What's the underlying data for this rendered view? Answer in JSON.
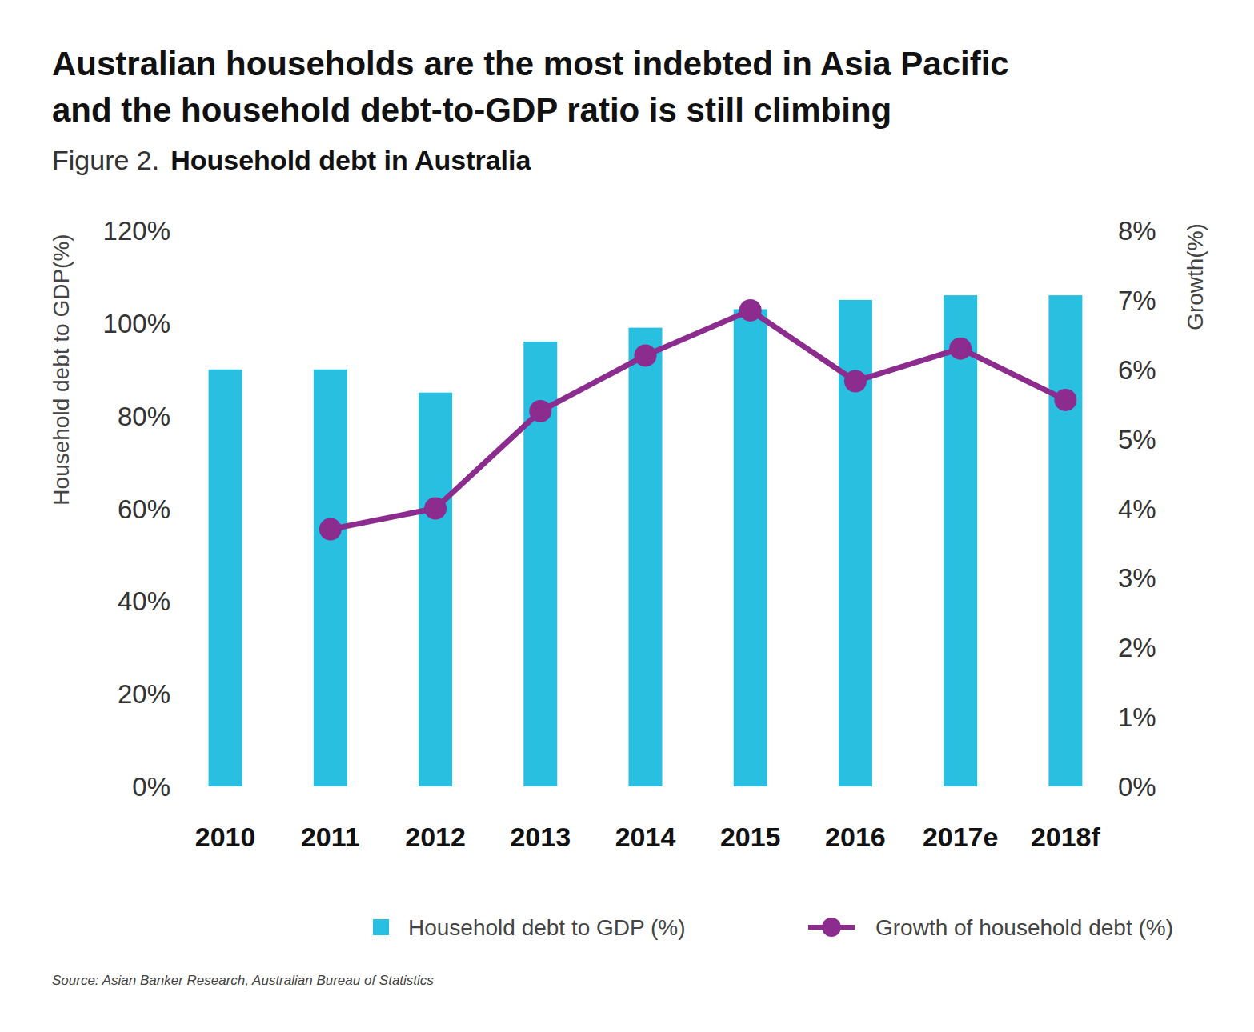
{
  "chart_data": {
    "type": "bar",
    "title": [
      "Australian households are the most indebted in Asia Pacific",
      "and the household debt-to-GDP ratio is still climbing"
    ],
    "figure": "Figure 2.",
    "subtitle": "Household debt in Australia",
    "y_label": "Household debt to GDP(%)",
    "y2_label": "Growth(%)",
    "source": "Source: Asian Banker Research, Australian Bureau of Statistics",
    "categories": [
      "2010",
      "2011",
      "2012",
      "2013",
      "2014",
      "2015",
      "2016",
      "2017e",
      "2018f"
    ],
    "series": [
      {
        "name": "Household debt to GDP (%)",
        "type": "bar",
        "color": "#29bfe0",
        "values": [
          90,
          90,
          85,
          96,
          99,
          103,
          105,
          106,
          106
        ]
      },
      {
        "name": "Growth of household debt (%)",
        "type": "line",
        "axis": "y2",
        "color": "#8b2c8e",
        "marker": "circle",
        "values": [
          null,
          3.7,
          4.0,
          5.4,
          6.2,
          6.85,
          5.83,
          6.3,
          5.56
        ]
      }
    ],
    "ylim": [
      0,
      120
    ],
    "yticks": [
      {
        "value": 0,
        "label": "0%"
      },
      {
        "value": 20,
        "label": "20%"
      },
      {
        "value": 40,
        "label": "40%"
      },
      {
        "value": 60,
        "label": "60%"
      },
      {
        "value": 80,
        "label": "80%"
      },
      {
        "value": 100,
        "label": "100%"
      },
      {
        "value": 120,
        "label": "120%"
      }
    ],
    "y2lim": [
      0,
      8
    ],
    "y2ticks": [
      {
        "value": 0,
        "label": "0%"
      },
      {
        "value": 1,
        "label": "1%"
      },
      {
        "value": 2,
        "label": "2%"
      },
      {
        "value": 3,
        "label": "3%"
      },
      {
        "value": 4,
        "label": "4%"
      },
      {
        "value": 5,
        "label": "5%"
      },
      {
        "value": 6,
        "label": "6%"
      },
      {
        "value": 7,
        "label": "7%"
      },
      {
        "value": 8,
        "label": "8%"
      }
    ],
    "grid": false,
    "legend": "bottom"
  }
}
